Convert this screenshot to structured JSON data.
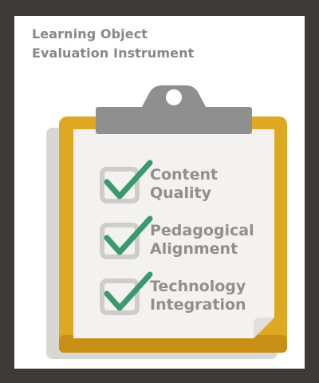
{
  "title": {
    "line1": "Learning Object",
    "line2": "Evaluation Instrument"
  },
  "checklist": [
    {
      "line1": "Content",
      "line2": "Quality",
      "checked": true
    },
    {
      "line1": "Pedagogical",
      "line2": "Alignment",
      "checked": true
    },
    {
      "line1": "Technology",
      "line2": "Integration",
      "checked": true
    }
  ],
  "colors": {
    "background": "#3e3a38",
    "frame": "#ffffff",
    "title_text": "#8a8886",
    "clipboard_board": "#dfa823",
    "clipboard_board_dark": "#c98f14",
    "clip": "#8f8f8f",
    "paper": "#f3f2f0",
    "checkbox": "#cfcdca",
    "checkmark": "#3a9a6e",
    "item_text": "#918e8c"
  }
}
